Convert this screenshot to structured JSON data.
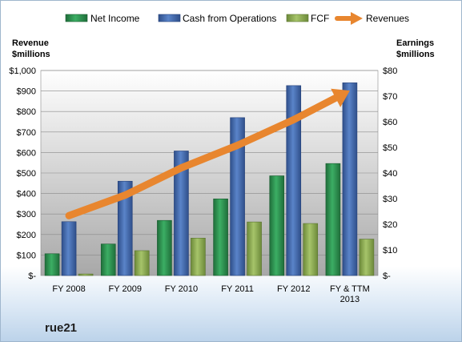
{
  "company": "rue21",
  "legend": {
    "net_income": "Net Income",
    "cfo": "Cash from Operations",
    "fcf": "FCF",
    "revenues": "Revenues"
  },
  "axes": {
    "left_title_line1": "Revenue",
    "left_title_line2": "$millions",
    "right_title_line1": "Earnings",
    "right_title_line2": "$millions"
  },
  "colors": {
    "net_income": "#2e9a55",
    "cfo": "#4a72b8",
    "fcf": "#94b35a",
    "revenues": "#e8862f"
  },
  "chart_data": {
    "type": "bar",
    "categories": [
      [
        "FY 2008"
      ],
      [
        "FY 2009"
      ],
      [
        "FY 2010"
      ],
      [
        "FY 2011"
      ],
      [
        "FY 2012"
      ],
      [
        "FY & TTM",
        "2013"
      ]
    ],
    "left_axis": {
      "ylim": [
        0,
        1000
      ],
      "ticks": [
        0,
        100,
        200,
        300,
        400,
        500,
        600,
        700,
        800,
        900,
        1000
      ],
      "tick_labels": [
        "$-",
        "$100",
        "$200",
        "$300",
        "$400",
        "$500",
        "$600",
        "$700",
        "$800",
        "$900",
        "$1,000"
      ]
    },
    "right_axis": {
      "ylim": [
        0,
        80
      ],
      "ticks": [
        0,
        10,
        20,
        30,
        40,
        50,
        60,
        70,
        80
      ],
      "tick_labels": [
        "$-",
        "$10",
        "$20",
        "$30",
        "$40",
        "$50",
        "$60",
        "$70",
        "$80"
      ]
    },
    "series": [
      {
        "name": "Net Income",
        "key": "net_income",
        "axis": "right",
        "type": "bar",
        "values": [
          8.5,
          12.3,
          21.5,
          29.9,
          38.9,
          43.7
        ]
      },
      {
        "name": "Cash from Operations",
        "key": "cfo",
        "axis": "right",
        "type": "bar",
        "values": [
          21.0,
          36.8,
          48.6,
          61.6,
          74.1,
          75.2
        ]
      },
      {
        "name": "FCF",
        "key": "fcf",
        "axis": "right",
        "type": "bar",
        "values": [
          0.6,
          9.7,
          14.6,
          20.9,
          20.3,
          14.2
        ]
      },
      {
        "name": "Revenues",
        "key": "revenues",
        "axis": "left",
        "type": "line",
        "values": [
          292,
          392,
          525,
          635,
          760,
          902
        ]
      }
    ],
    "grid": true,
    "legend_position": "top"
  }
}
